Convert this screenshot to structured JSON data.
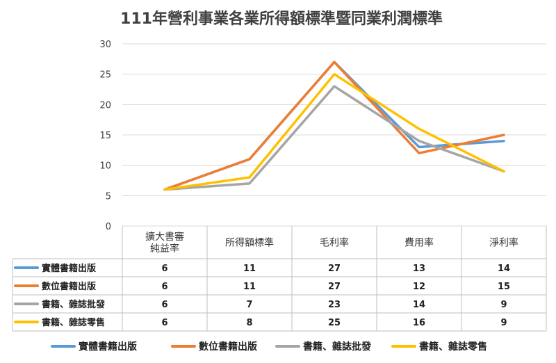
{
  "chart_data": {
    "type": "line",
    "title": "111年營利事業各業所得額標準暨同業利潤標準",
    "categories": [
      [
        "擴大書審",
        "純益率"
      ],
      [
        "所得額標準"
      ],
      [
        "毛利率"
      ],
      [
        "費用率"
      ],
      [
        "淨利率"
      ]
    ],
    "ylim": [
      0,
      30
    ],
    "yticks": [
      "0",
      "5",
      "10",
      "15",
      "20",
      "25",
      "30"
    ],
    "grid": true,
    "legend": "bottom",
    "series": [
      {
        "name": "實體書籍出版",
        "color": "#5b9bd5",
        "values": [
          6,
          11,
          27,
          13,
          14
        ]
      },
      {
        "name": "數位書籍出版",
        "color": "#ed7d31",
        "values": [
          6,
          11,
          27,
          12,
          15
        ]
      },
      {
        "name": "書籍、雜誌批發",
        "color": "#a5a5a5",
        "values": [
          6,
          7,
          23,
          14,
          9
        ]
      },
      {
        "name": "書籍、雜誌零售",
        "color": "#ffc000",
        "values": [
          6,
          8,
          25,
          16,
          9
        ]
      }
    ]
  }
}
